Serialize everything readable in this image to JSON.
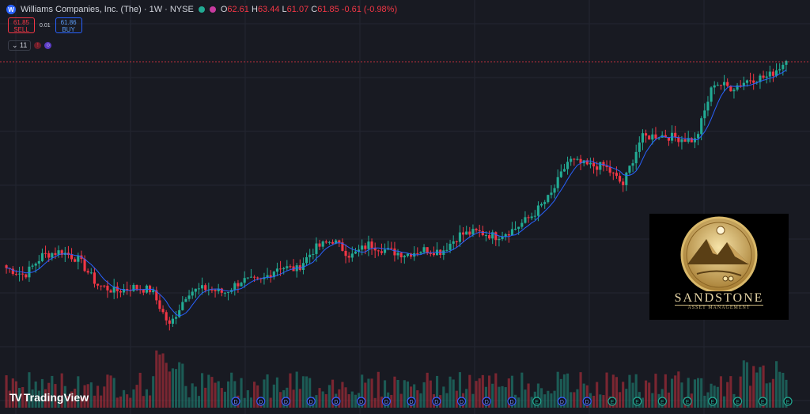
{
  "header": {
    "logo_letter": "W",
    "title": "Williams Companies, Inc. (The) · 1W · NYSE",
    "open_label": "O",
    "open": "62.61",
    "high_label": "H",
    "high": "63.44",
    "low_label": "L",
    "low": "61.07",
    "close_label": "C",
    "close": "61.85",
    "change": "-0.61 (-0.98%)"
  },
  "trade": {
    "sell_price": "61.85",
    "sell_label": "SELL",
    "spread": "0.01",
    "buy_price": "61.86",
    "buy_label": "BUY"
  },
  "indicators": {
    "count": "11"
  },
  "branding": {
    "name": "TradingView"
  },
  "ad": {
    "name": "SANDSTONE",
    "subtitle": "ASSET MANAGEMENT"
  },
  "colors": {
    "up": "#22ab94",
    "down": "#f23645",
    "ma": "#2962ff",
    "background": "#181a22",
    "grid": "#232631"
  },
  "chart_data": {
    "type": "line",
    "series": [
      {
        "values": [
          24.5,
          23.2,
          26.8,
          27.5,
          26.0,
          21.5,
          20.3,
          21.0,
          20.5,
          14.0,
          20.2,
          20.8,
          20.0,
          22.3,
          22.0,
          24.8,
          24.2,
          28.0,
          29.5,
          26.6,
          28.8,
          27.6,
          27.0,
          27.8,
          27.5,
          30.5,
          31.0,
          30.2,
          31.5,
          34.0,
          37.5,
          44.0,
          43.0,
          42.8,
          39.5,
          48.0,
          48.5,
          48.0,
          47.5,
          58.0,
          57.0,
          58.6,
          59.0,
          61.85
        ]
      }
    ],
    "events": [
      "D",
      "D",
      "D",
      "D",
      "D",
      "D",
      "D",
      "D",
      "D",
      "D",
      "D",
      "D",
      "E",
      "D",
      "D",
      "E",
      "E",
      "E",
      "E",
      "E",
      "E",
      "E",
      "E"
    ]
  }
}
